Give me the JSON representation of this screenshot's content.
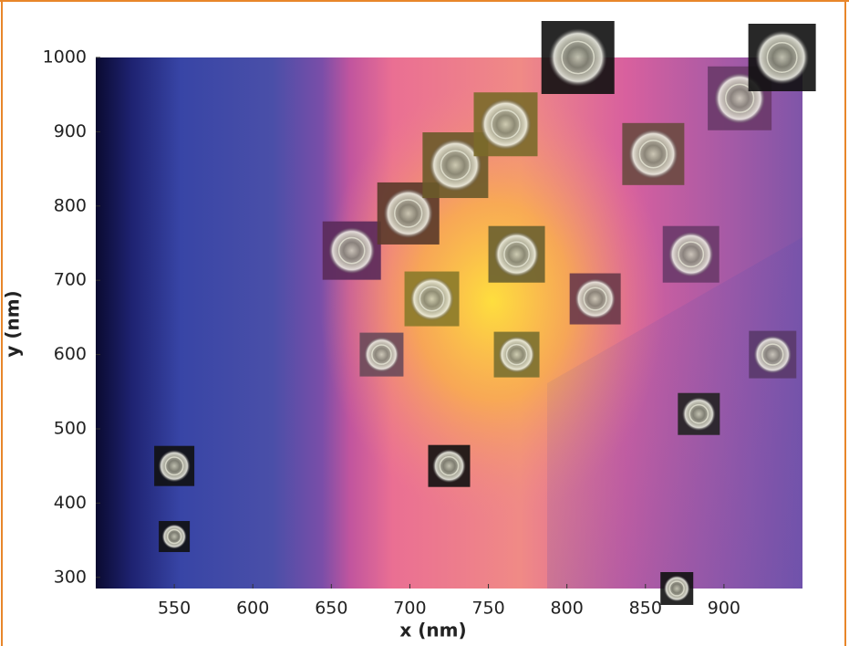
{
  "chart_data": {
    "type": "scatter",
    "x_label": "x (nm)",
    "y_label": "y (nm)",
    "x": [
      550,
      550,
      725,
      870,
      682,
      768,
      714,
      663,
      699,
      729,
      761,
      768,
      818,
      855,
      807,
      879,
      910,
      937,
      931,
      884
    ],
    "y": [
      450,
      355,
      450,
      285,
      600,
      600,
      675,
      740,
      790,
      855,
      910,
      735,
      675,
      870,
      1000,
      735,
      945,
      1000,
      600,
      520
    ],
    "xlim": [
      500,
      950
    ],
    "ylim": [
      285,
      1000
    ],
    "xticks": [
      550,
      600,
      650,
      700,
      750,
      800,
      850,
      900
    ],
    "yticks": [
      300,
      400,
      500,
      600,
      700,
      800,
      900,
      1000
    ],
    "grid": false
  }
}
